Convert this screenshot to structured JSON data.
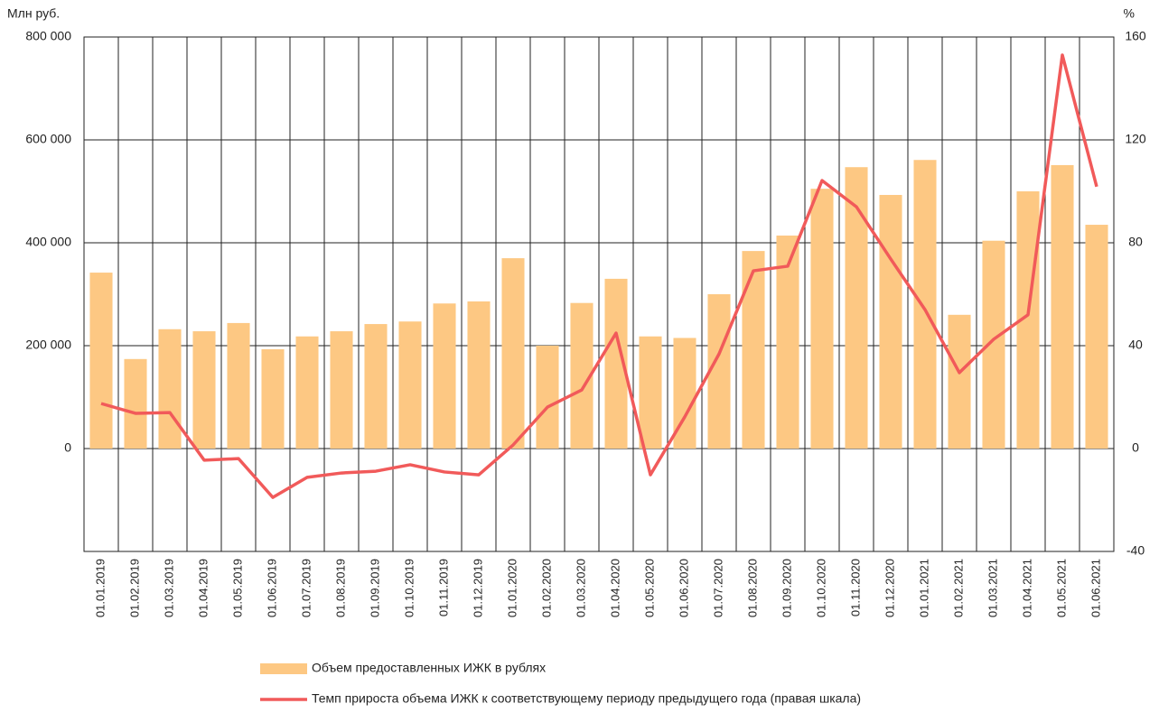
{
  "chart_data": {
    "type": "bar-line",
    "y_label": "Млн руб.",
    "y2_label": "%",
    "categories": [
      "01.01.2019",
      "01.02.2019",
      "01.03.2019",
      "01.04.2019",
      "01.05.2019",
      "01.06.2019",
      "01.07.2019",
      "01.08.2019",
      "01.09.2019",
      "01.10.2019",
      "01.11.2019",
      "01.12.2019",
      "01.01.2020",
      "01.02.2020",
      "01.03.2020",
      "01.04.2020",
      "01.05.2020",
      "01.06.2020",
      "01.07.2020",
      "01.08.2020",
      "01.09.2020",
      "01.10.2020",
      "01.11.2020",
      "01.12.2020",
      "01.01.2021",
      "01.02.2021",
      "01.03.2021",
      "01.04.2021",
      "01.05.2021",
      "01.06.2021"
    ],
    "series": [
      {
        "name": "Объем предоставленных ИЖК в рублях",
        "color": "#fdc883",
        "kind": "bar",
        "values": [
          342000,
          174000,
          232000,
          228000,
          244000,
          193000,
          218000,
          228000,
          242000,
          247000,
          282000,
          286000,
          370000,
          200000,
          283000,
          330000,
          218000,
          215000,
          300000,
          384000,
          414000,
          505000,
          547000,
          493000,
          561000,
          260000,
          404000,
          500000,
          551000,
          435000
        ]
      },
      {
        "name": "Темп прироста объема ИЖК к соответствующему периоду предыдущего года (правая шкала)",
        "color": "#f15a5a",
        "kind": "line",
        "axis": "y2",
        "values": [
          17.5,
          13.7,
          14,
          -4.5,
          -3.9,
          -19,
          -11.2,
          -9.5,
          -8.8,
          -6.3,
          -9.1,
          -10.2,
          1.4,
          16.1,
          22.8,
          44.9,
          -10.2,
          12.3,
          36.8,
          69.1,
          70.9,
          104.2,
          94,
          73.7,
          54,
          29.5,
          42.5,
          52,
          153,
          101.8
        ]
      }
    ],
    "ylim": [
      -200000,
      800000
    ],
    "yticks": [
      0,
      {
        "value": 200000,
        "label": "200 000"
      },
      {
        "value": 400000,
        "label": "400 000"
      },
      {
        "value": 600000,
        "label": "600 000"
      },
      {
        "value": 800000,
        "label": "800 000"
      }
    ],
    "y2lim": [
      -40,
      160
    ],
    "y2ticks": [
      -40,
      0,
      40,
      80,
      120,
      160
    ],
    "grid": true
  }
}
